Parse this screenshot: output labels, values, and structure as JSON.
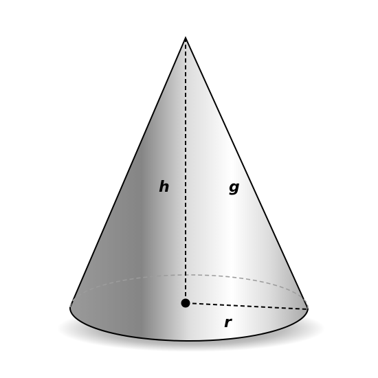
{
  "figure": {
    "labels": {
      "height": "h",
      "slant": "g",
      "radius": "r"
    }
  }
}
